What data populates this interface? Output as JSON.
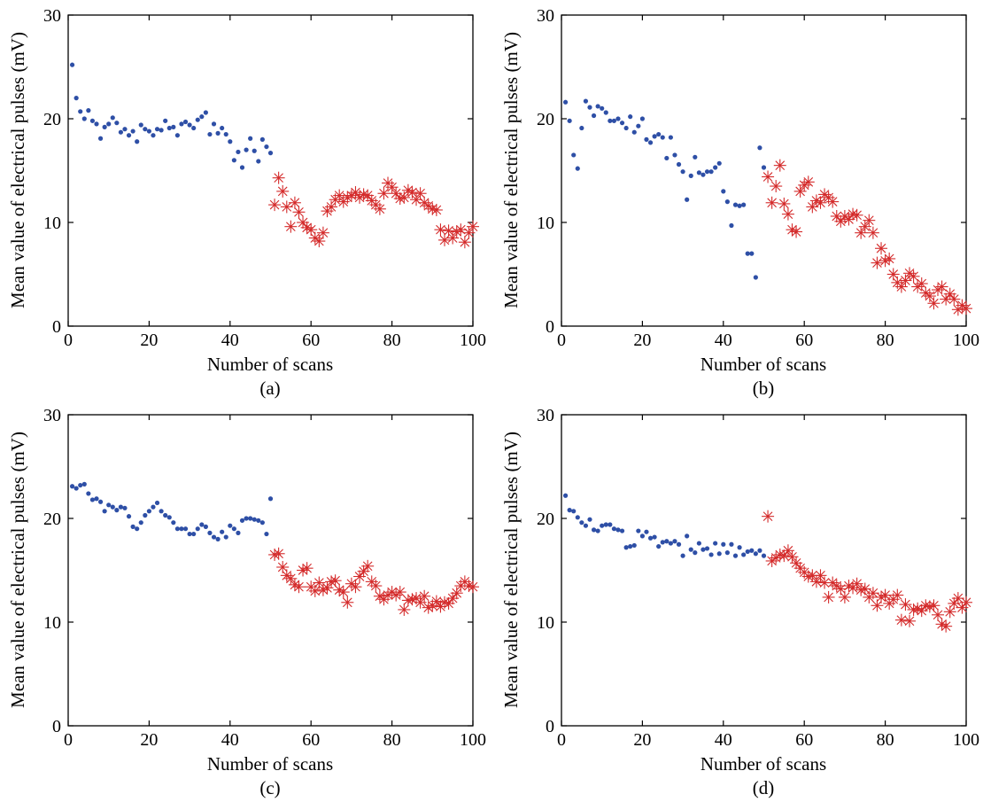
{
  "figure": {
    "colors": {
      "series_before": "#2e4fa6",
      "series_after": "#d42a2a",
      "axis": "#000000"
    }
  },
  "chart_data": [
    {
      "type": "scatter",
      "panel_label": "(a)",
      "xlabel": "Number of scans",
      "ylabel": "Mean value of electrical pulses (mV)",
      "xlim": [
        0,
        100
      ],
      "ylim": [
        0,
        30
      ],
      "xticks": [
        "0",
        "20",
        "40",
        "60",
        "80",
        "100"
      ],
      "yticks": [
        "0",
        "10",
        "20",
        "30"
      ],
      "grid": false,
      "series": [
        {
          "marker": "dot",
          "x": [
            1,
            2,
            3,
            4,
            5,
            6,
            7,
            8,
            9,
            10,
            11,
            12,
            13,
            14,
            15,
            16,
            17,
            18,
            19,
            20,
            21,
            22,
            23,
            24,
            25,
            26,
            27,
            28,
            29,
            30,
            31,
            32,
            33,
            34,
            35,
            36,
            37,
            38,
            39,
            40,
            41,
            42,
            43,
            44,
            45,
            46,
            47,
            48,
            49,
            50
          ],
          "y": [
            25.2,
            22.0,
            20.7,
            20.0,
            20.8,
            19.8,
            19.5,
            18.1,
            19.2,
            19.5,
            20.1,
            19.6,
            18.7,
            19.0,
            18.4,
            18.8,
            17.8,
            19.4,
            19.0,
            18.8,
            18.4,
            19.0,
            18.9,
            19.8,
            19.1,
            19.2,
            18.4,
            19.5,
            19.7,
            19.4,
            19.1,
            19.9,
            20.2,
            20.6,
            18.5,
            19.5,
            18.6,
            19.1,
            18.5,
            17.8,
            16.0,
            16.8,
            15.3,
            17.0,
            18.1,
            16.9,
            15.9,
            18.0,
            17.3,
            16.7
          ]
        },
        {
          "marker": "asterisk",
          "x": [
            51,
            52,
            53,
            54,
            55,
            56,
            57,
            58,
            59,
            60,
            61,
            62,
            63,
            64,
            65,
            66,
            67,
            68,
            69,
            70,
            71,
            72,
            73,
            74,
            75,
            76,
            77,
            78,
            79,
            80,
            81,
            82,
            83,
            84,
            85,
            86,
            87,
            88,
            89,
            90,
            91,
            92,
            93,
            94,
            95,
            96,
            97,
            98,
            99,
            100
          ],
          "y": [
            11.7,
            14.3,
            13.0,
            11.5,
            9.6,
            11.9,
            11.0,
            10.0,
            9.5,
            9.3,
            8.5,
            8.2,
            9.0,
            11.1,
            11.5,
            12.2,
            12.6,
            12.0,
            12.4,
            12.6,
            12.9,
            12.4,
            12.7,
            12.6,
            12.1,
            11.7,
            11.3,
            12.8,
            13.8,
            13.4,
            12.8,
            12.3,
            12.4,
            13.1,
            12.9,
            12.2,
            12.8,
            11.9,
            11.6,
            11.3,
            11.2,
            9.3,
            8.3,
            9.2,
            8.5,
            9.1,
            9.3,
            8.1,
            9.0,
            9.6
          ]
        }
      ]
    },
    {
      "type": "scatter",
      "panel_label": "(b)",
      "xlabel": "Number of scans",
      "ylabel": "Mean value of electrical pulses (mV)",
      "xlim": [
        0,
        100
      ],
      "ylim": [
        0,
        30
      ],
      "xticks": [
        "0",
        "20",
        "40",
        "60",
        "80",
        "100"
      ],
      "yticks": [
        "0",
        "10",
        "20",
        "30"
      ],
      "grid": false,
      "series": [
        {
          "marker": "dot",
          "x": [
            1,
            2,
            3,
            4,
            5,
            6,
            7,
            8,
            9,
            10,
            11,
            12,
            13,
            14,
            15,
            16,
            17,
            18,
            19,
            20,
            21,
            22,
            23,
            24,
            25,
            26,
            27,
            28,
            29,
            30,
            31,
            32,
            33,
            34,
            35,
            36,
            37,
            38,
            39,
            40,
            41,
            42,
            43,
            44,
            45,
            46,
            47,
            48,
            49,
            50
          ],
          "y": [
            21.6,
            19.8,
            16.5,
            15.2,
            19.1,
            21.7,
            21.1,
            20.3,
            21.2,
            21.0,
            20.6,
            19.8,
            19.8,
            20.0,
            19.6,
            19.1,
            20.2,
            18.7,
            19.3,
            20.0,
            18.0,
            17.7,
            18.3,
            18.5,
            18.2,
            16.2,
            18.2,
            16.5,
            15.6,
            14.9,
            12.2,
            14.5,
            16.3,
            14.8,
            14.6,
            14.9,
            14.9,
            15.3,
            15.7,
            13.0,
            12.0,
            9.7,
            11.7,
            11.6,
            11.7,
            7.0,
            7.0,
            4.7,
            17.2,
            15.3
          ]
        },
        {
          "marker": "asterisk",
          "x": [
            51,
            52,
            53,
            54,
            55,
            56,
            57,
            58,
            59,
            60,
            61,
            62,
            63,
            64,
            65,
            66,
            67,
            68,
            69,
            70,
            71,
            72,
            73,
            74,
            75,
            76,
            77,
            78,
            79,
            80,
            81,
            82,
            83,
            84,
            85,
            86,
            87,
            88,
            89,
            90,
            91,
            92,
            93,
            94,
            95,
            96,
            97,
            98,
            99,
            100
          ],
          "y": [
            14.4,
            11.9,
            13.5,
            15.5,
            11.8,
            10.8,
            9.3,
            9.1,
            13.0,
            13.6,
            13.9,
            11.5,
            12.1,
            11.9,
            12.7,
            12.4,
            12.0,
            10.6,
            10.1,
            10.6,
            10.3,
            10.8,
            10.7,
            9.0,
            9.6,
            10.2,
            9.0,
            6.1,
            7.5,
            6.3,
            6.5,
            5.0,
            4.2,
            3.8,
            4.4,
            5.1,
            4.8,
            3.8,
            4.1,
            3.2,
            2.9,
            2.2,
            3.5,
            3.8,
            2.6,
            3.1,
            2.6,
            1.6,
            2.0,
            1.7
          ]
        }
      ]
    },
    {
      "type": "scatter",
      "panel_label": "(c)",
      "xlabel": "Number of scans",
      "ylabel": "Mean value of electrical pulses (mV)",
      "xlim": [
        0,
        100
      ],
      "ylim": [
        0,
        30
      ],
      "xticks": [
        "0",
        "20",
        "40",
        "60",
        "80",
        "100"
      ],
      "yticks": [
        "0",
        "10",
        "20",
        "30"
      ],
      "grid": false,
      "series": [
        {
          "marker": "dot",
          "x": [
            1,
            2,
            3,
            4,
            5,
            6,
            7,
            8,
            9,
            10,
            11,
            12,
            13,
            14,
            15,
            16,
            17,
            18,
            19,
            20,
            21,
            22,
            23,
            24,
            25,
            26,
            27,
            28,
            29,
            30,
            31,
            32,
            33,
            34,
            35,
            36,
            37,
            38,
            39,
            40,
            41,
            42,
            43,
            44,
            45,
            46,
            47,
            48,
            49,
            50
          ],
          "y": [
            23.1,
            22.9,
            23.2,
            23.3,
            22.4,
            21.8,
            21.9,
            21.6,
            20.7,
            21.3,
            21.1,
            20.8,
            21.1,
            21.0,
            20.2,
            19.2,
            19.0,
            19.6,
            20.3,
            20.7,
            21.1,
            21.5,
            20.7,
            20.3,
            20.1,
            19.6,
            19.0,
            19.0,
            19.0,
            18.5,
            18.5,
            19.0,
            19.4,
            19.2,
            18.6,
            18.2,
            18.0,
            18.7,
            18.2,
            19.3,
            19.0,
            18.6,
            19.8,
            20.0,
            20.0,
            19.9,
            19.8,
            19.6,
            18.5,
            21.9
          ]
        },
        {
          "marker": "asterisk",
          "x": [
            51,
            52,
            53,
            54,
            55,
            56,
            57,
            58,
            59,
            60,
            61,
            62,
            63,
            64,
            65,
            66,
            67,
            68,
            69,
            70,
            71,
            72,
            73,
            74,
            75,
            76,
            77,
            78,
            79,
            80,
            81,
            82,
            83,
            84,
            85,
            86,
            87,
            88,
            89,
            90,
            91,
            92,
            93,
            94,
            95,
            96,
            97,
            98,
            99,
            100
          ],
          "y": [
            16.5,
            16.6,
            15.3,
            14.5,
            14.2,
            13.6,
            13.4,
            15.0,
            15.2,
            13.4,
            13.0,
            13.8,
            13.1,
            13.3,
            13.9,
            14.0,
            13.1,
            12.9,
            11.9,
            13.7,
            13.4,
            14.4,
            14.9,
            15.4,
            13.9,
            13.5,
            12.5,
            12.2,
            12.6,
            12.9,
            12.6,
            12.9,
            11.2,
            12.1,
            12.2,
            12.3,
            11.9,
            12.5,
            11.4,
            11.6,
            12.0,
            11.5,
            11.9,
            11.8,
            12.3,
            12.8,
            13.5,
            13.9,
            13.5,
            13.4
          ]
        }
      ]
    },
    {
      "type": "scatter",
      "panel_label": "(d)",
      "xlabel": "Number of scans",
      "ylabel": "Mean value of electrical pulses (mV)",
      "xlim": [
        0,
        100
      ],
      "ylim": [
        0,
        30
      ],
      "xticks": [
        "0",
        "20",
        "40",
        "60",
        "80",
        "100"
      ],
      "yticks": [
        "0",
        "10",
        "20",
        "30"
      ],
      "grid": false,
      "series": [
        {
          "marker": "dot",
          "x": [
            1,
            2,
            3,
            4,
            5,
            6,
            7,
            8,
            9,
            10,
            11,
            12,
            13,
            14,
            15,
            16,
            17,
            18,
            19,
            20,
            21,
            22,
            23,
            24,
            25,
            26,
            27,
            28,
            29,
            30,
            31,
            32,
            33,
            34,
            35,
            36,
            37,
            38,
            39,
            40,
            41,
            42,
            43,
            44,
            45,
            46,
            47,
            48,
            49,
            50
          ],
          "y": [
            22.2,
            20.8,
            20.7,
            20.1,
            19.6,
            19.3,
            19.9,
            18.9,
            18.8,
            19.3,
            19.4,
            19.4,
            19.0,
            18.9,
            18.8,
            17.2,
            17.3,
            17.4,
            18.8,
            18.3,
            18.7,
            18.1,
            18.2,
            17.3,
            17.7,
            17.8,
            17.6,
            17.8,
            17.5,
            16.4,
            18.3,
            17.0,
            16.7,
            17.6,
            17.0,
            17.1,
            16.5,
            17.6,
            16.6,
            17.5,
            16.7,
            17.5,
            16.4,
            17.2,
            16.5,
            16.8,
            16.9,
            16.6,
            16.9,
            16.4
          ]
        },
        {
          "marker": "asterisk",
          "x": [
            51,
            52,
            53,
            54,
            55,
            56,
            57,
            58,
            59,
            60,
            61,
            62,
            63,
            64,
            65,
            66,
            67,
            68,
            69,
            70,
            71,
            72,
            73,
            74,
            75,
            76,
            77,
            78,
            79,
            80,
            81,
            82,
            83,
            84,
            85,
            86,
            87,
            88,
            89,
            90,
            91,
            92,
            93,
            94,
            95,
            96,
            97,
            98,
            99,
            100
          ],
          "y": [
            20.2,
            15.9,
            16.2,
            16.5,
            16.4,
            16.9,
            16.3,
            15.7,
            15.2,
            14.8,
            14.4,
            14.5,
            13.9,
            14.5,
            13.8,
            12.4,
            13.8,
            13.5,
            13.2,
            12.4,
            13.5,
            13.3,
            13.7,
            13.1,
            13.2,
            12.4,
            12.8,
            11.6,
            12.4,
            12.6,
            11.8,
            12.2,
            12.6,
            10.2,
            11.7,
            10.1,
            11.2,
            11.3,
            11.1,
            11.6,
            11.5,
            11.6,
            10.7,
            9.8,
            9.6,
            11.0,
            11.8,
            12.3,
            11.4,
            11.9
          ]
        }
      ]
    }
  ]
}
